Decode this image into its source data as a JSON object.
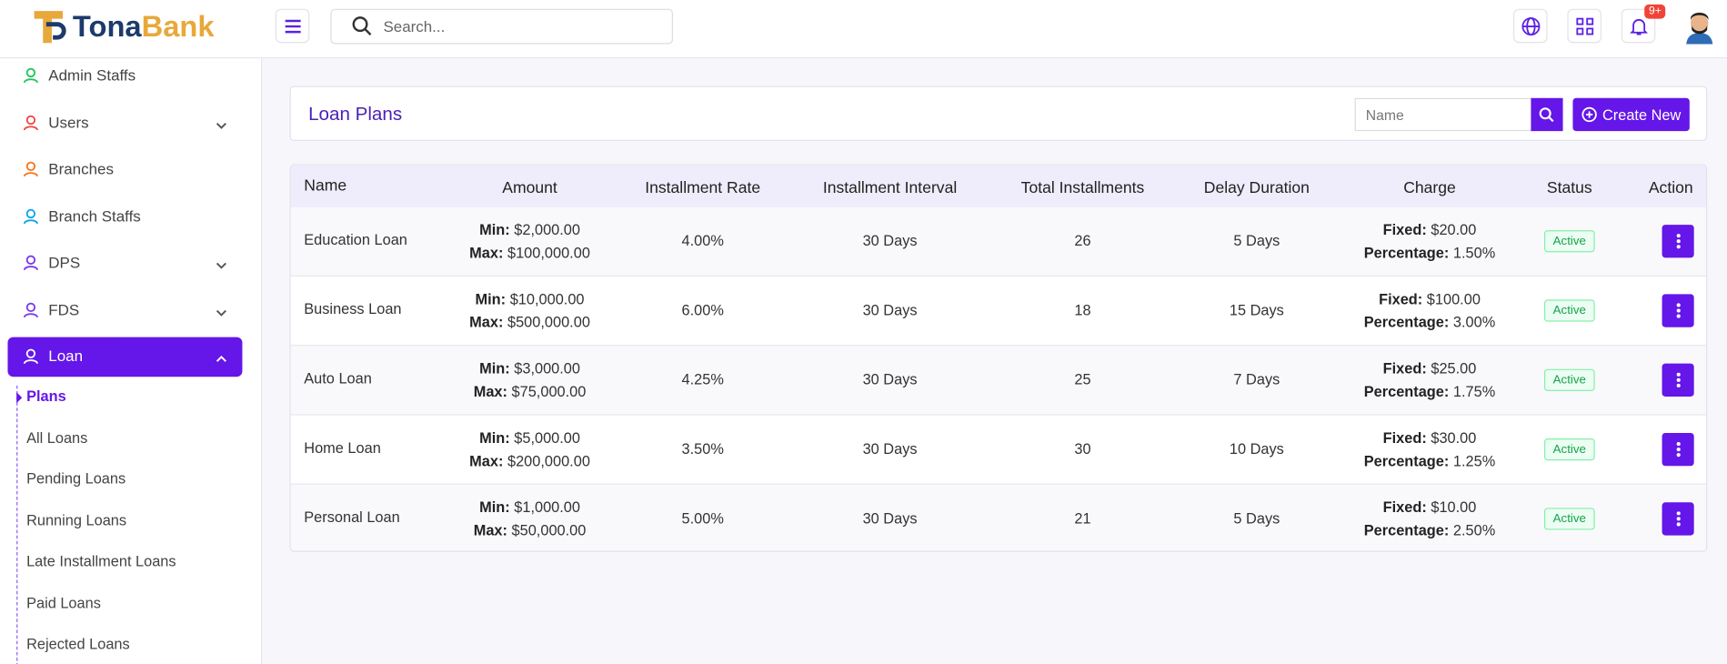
{
  "header": {
    "brand_prefix": "Tona",
    "brand_suffix": "Bank",
    "search_placeholder": "Search...",
    "notification_badge": "9+"
  },
  "sidebar": {
    "items": [
      "Admin Staffs",
      "Users",
      "Branches",
      "Branch Staffs",
      "DPS",
      "FDS",
      "Loan"
    ],
    "submenu": [
      "Plans",
      "All Loans",
      "Pending Loans",
      "Running Loans",
      "Late Installment Loans",
      "Paid Loans",
      "Rejected Loans"
    ]
  },
  "page": {
    "title": "Loan Plans",
    "filter_placeholder": "Name",
    "create_button": "Create New"
  },
  "table": {
    "headers": [
      "Name",
      "Amount",
      "Installment Rate",
      "Installment Interval",
      "Total Installments",
      "Delay Duration",
      "Charge",
      "Status",
      "Action"
    ],
    "labels": {
      "min": "Min:",
      "max": "Max:",
      "fixed": "Fixed:",
      "percentage": "Percentage:"
    },
    "rows": [
      {
        "name": "Education Loan",
        "min": "$2,000.00",
        "max": "$100,000.00",
        "rate": "4.00%",
        "interval": "30 Days",
        "total": "26",
        "delay": "5 Days",
        "fixed": "$20.00",
        "percentage": "1.50%",
        "status": "Active"
      },
      {
        "name": "Business Loan",
        "min": "$10,000.00",
        "max": "$500,000.00",
        "rate": "6.00%",
        "interval": "30 Days",
        "total": "18",
        "delay": "15 Days",
        "fixed": "$100.00",
        "percentage": "3.00%",
        "status": "Active"
      },
      {
        "name": "Auto Loan",
        "min": "$3,000.00",
        "max": "$75,000.00",
        "rate": "4.25%",
        "interval": "30 Days",
        "total": "25",
        "delay": "7 Days",
        "fixed": "$25.00",
        "percentage": "1.75%",
        "status": "Active"
      },
      {
        "name": "Home Loan",
        "min": "$5,000.00",
        "max": "$200,000.00",
        "rate": "3.50%",
        "interval": "30 Days",
        "total": "30",
        "delay": "10 Days",
        "fixed": "$30.00",
        "percentage": "1.25%",
        "status": "Active"
      },
      {
        "name": "Personal Loan",
        "min": "$1,000.00",
        "max": "$50,000.00",
        "rate": "5.00%",
        "interval": "30 Days",
        "total": "21",
        "delay": "5 Days",
        "fixed": "$10.00",
        "percentage": "2.50%",
        "status": "Active"
      }
    ]
  }
}
